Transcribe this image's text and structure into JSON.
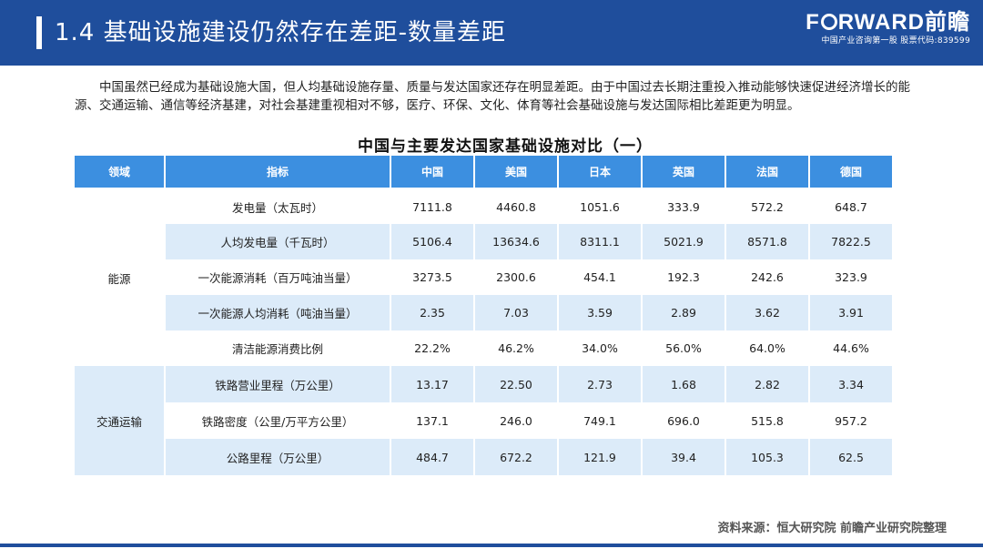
{
  "header": {
    "title": "1.4 基础设施建设仍然存在差距-数量差距",
    "brand_left": "F",
    "brand_right": "RWARD前瞻",
    "brand_tagline": "中国产业咨询第一股 股票代码:839599"
  },
  "intro": "中国虽然已经成为基础设施大国，但人均基础设施存量、质量与发达国家还存在明显差距。由于中国过去长期注重投入推动能够快速促进经济增长的能源、交通运输、通信等经济基建，对社会基建重视相对不够，医疗、环保、文化、体育等社会基础设施与发达国际相比差距更为明显。",
  "table": {
    "title": "中国与主要发达国家基础设施对比（一）",
    "headers": [
      "领域",
      "指标",
      "中国",
      "美国",
      "日本",
      "英国",
      "法国",
      "德国"
    ],
    "groups": {
      "energy": "能源",
      "traffic": "交通运输"
    },
    "rows": [
      {
        "indicator": "发电量（太瓦时）",
        "values": [
          "7111.8",
          "4460.8",
          "1051.6",
          "333.9",
          "572.2",
          "648.7"
        ]
      },
      {
        "indicator": "人均发电量（千瓦时）",
        "values": [
          "5106.4",
          "13634.6",
          "8311.1",
          "5021.9",
          "8571.8",
          "7822.5"
        ]
      },
      {
        "indicator": "一次能源消耗（百万吨油当量）",
        "values": [
          "3273.5",
          "2300.6",
          "454.1",
          "192.3",
          "242.6",
          "323.9"
        ]
      },
      {
        "indicator": "一次能源人均消耗（吨油当量）",
        "values": [
          "2.35",
          "7.03",
          "3.59",
          "2.89",
          "3.62",
          "3.91"
        ]
      },
      {
        "indicator": "清洁能源消费比例",
        "values": [
          "22.2%",
          "46.2%",
          "34.0%",
          "56.0%",
          "64.0%",
          "44.6%"
        ]
      },
      {
        "indicator": "铁路营业里程（万公里）",
        "values": [
          "13.17",
          "22.50",
          "2.73",
          "1.68",
          "2.82",
          "3.34"
        ]
      },
      {
        "indicator": "铁路密度（公里/万平方公里）",
        "values": [
          "137.1",
          "246.0",
          "749.1",
          "696.0",
          "515.8",
          "957.2"
        ]
      },
      {
        "indicator": "公路里程（万公里）",
        "values": [
          "484.7",
          "672.2",
          "121.9",
          "39.4",
          "105.3",
          "62.5"
        ]
      }
    ]
  },
  "source": "资料来源：恒大研究院 前瞻产业研究院整理"
}
